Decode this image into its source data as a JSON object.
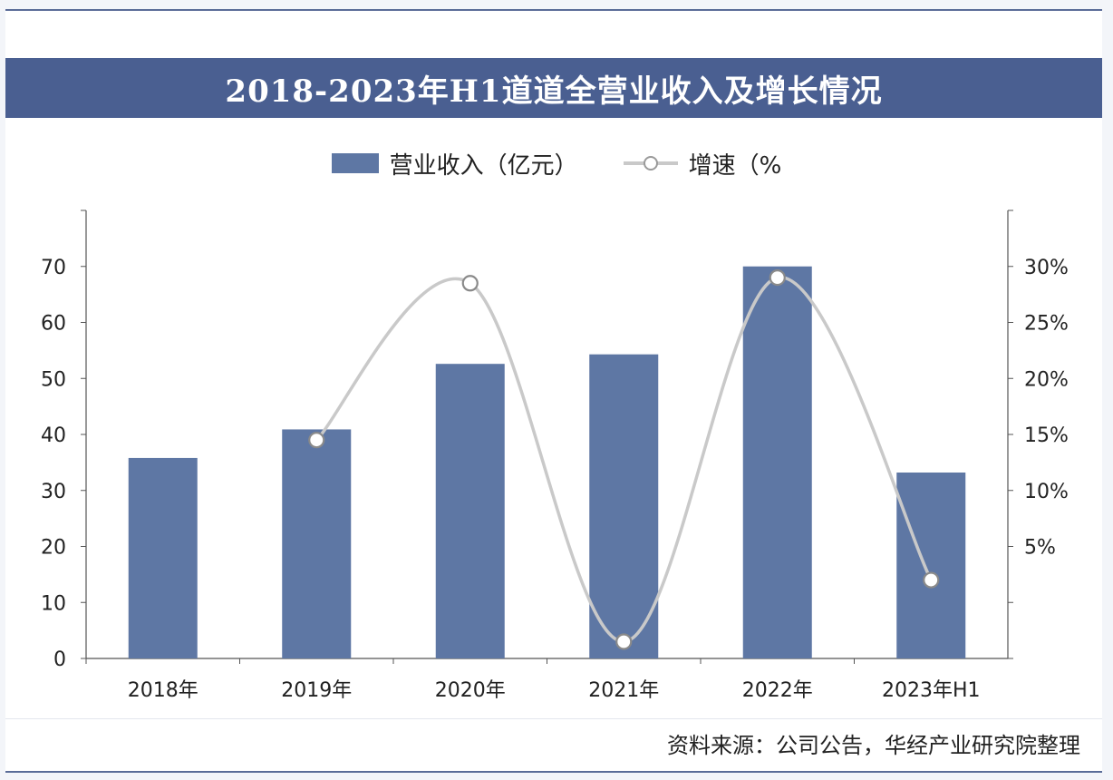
{
  "title": "2018-2023年H1道道全营业收入及增长情况",
  "legend": {
    "bar_label": "营业收入（亿元）",
    "line_label": "增速（%"
  },
  "source": "资料来源：公司公告，华经产业研究院整理",
  "colors": {
    "bar": "#5e77a4",
    "line": "#c9c9c9",
    "title_bg": "#4a5f91"
  },
  "chart_data": {
    "type": "bar",
    "categories": [
      "2018年",
      "2019年",
      "2020年",
      "2021年",
      "2022年",
      "2023年H1"
    ],
    "series": [
      {
        "name": "营业收入（亿元）",
        "type": "bar",
        "axis": "left",
        "values": [
          35.8,
          40.9,
          52.6,
          54.3,
          70.0,
          33.2
        ]
      },
      {
        "name": "增速（%",
        "type": "line",
        "axis": "right",
        "values": [
          null,
          14.5,
          28.5,
          -3.5,
          29.0,
          2.0
        ]
      }
    ],
    "left_axis": {
      "ylim": [
        0,
        80
      ],
      "ticks": [
        "0",
        "10",
        "20",
        "30",
        "40",
        "50",
        "60",
        "70",
        "80"
      ]
    },
    "right_axis": {
      "ylim": [
        -5,
        35
      ],
      "ticks": [
        "-5%",
        "0%",
        "5%",
        "10%",
        "15%",
        "20%",
        "25%",
        "30%",
        "35%"
      ]
    },
    "grid": false,
    "legend_position": "top-center"
  }
}
